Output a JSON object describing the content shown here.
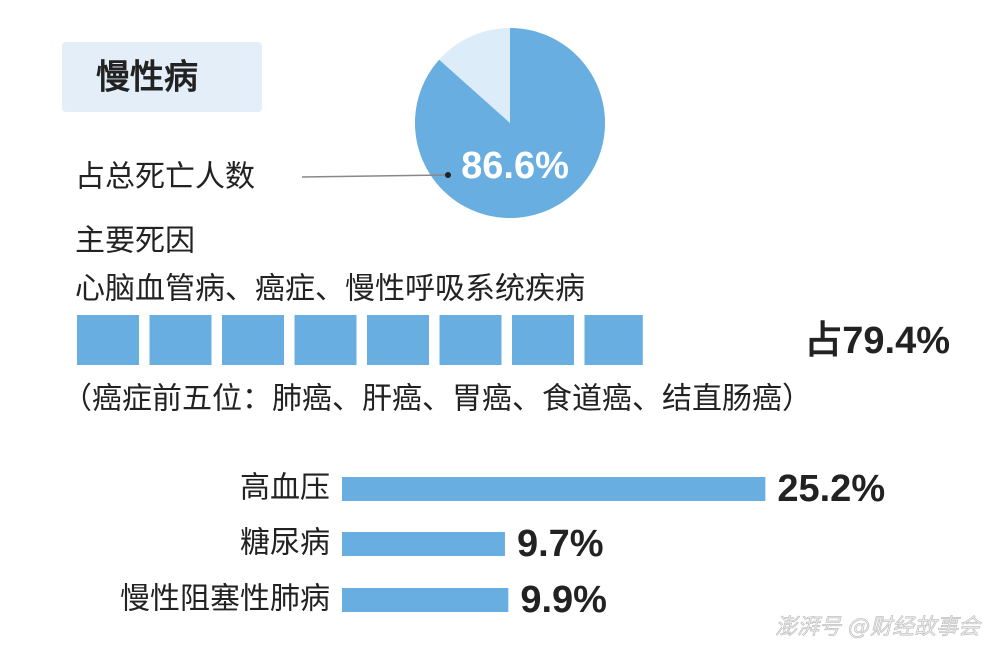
{
  "title": "慢性病",
  "chart_data": [
    {
      "type": "pie",
      "label": "占总死亡人数",
      "values": [
        86.6
      ],
      "value_labels": [
        "86.6%"
      ],
      "color": "#68aee0",
      "rest_color": "#dcecf9"
    },
    {
      "type": "waffle",
      "heading": "主要死因",
      "label": "心脑血管病、癌症、慢性呼吸系统疾病",
      "values": [
        79.4
      ],
      "value_labels": [
        "占79.4%"
      ],
      "color": "#68aee0",
      "note": "（癌症前五位：肺癌、肝癌、胃癌、食道癌、结直肠癌）"
    },
    {
      "type": "bar",
      "categories": [
        "高血压",
        "糖尿病",
        "慢性阻塞性肺病"
      ],
      "values": [
        25.2,
        9.7,
        9.9
      ],
      "value_labels": [
        "25.2%",
        "9.7%",
        "9.9%"
      ],
      "color": "#68aee0"
    }
  ],
  "watermark": "澎湃号 @财经故事会"
}
